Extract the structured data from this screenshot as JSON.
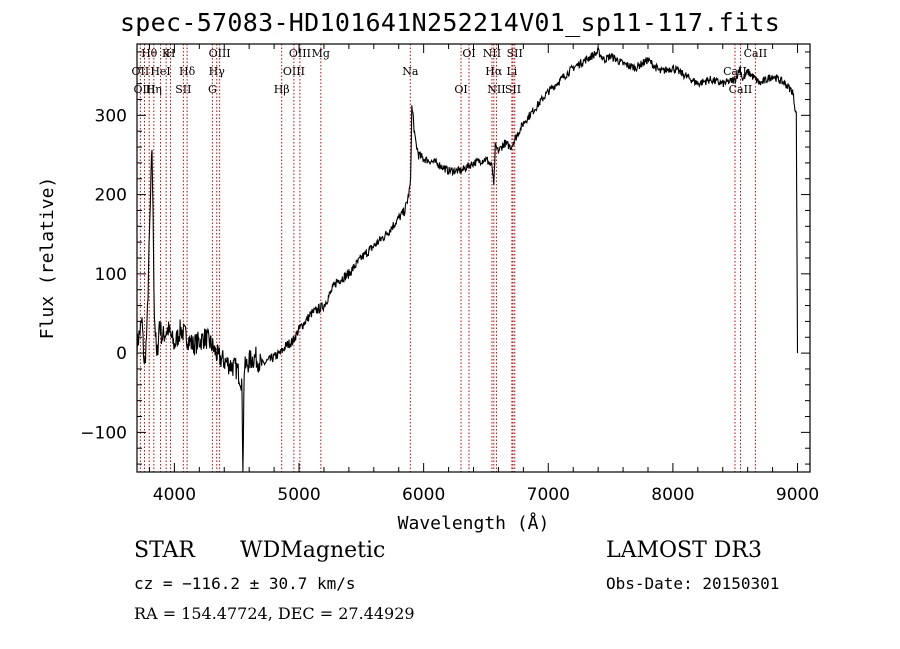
{
  "chart_data": {
    "type": "line",
    "title": "spec-57083-HD101641N252214V01_sp11-117.fits",
    "xlabel": "Wavelength (Å)",
    "ylabel": "Flux (relative)",
    "xlim": [
      3700,
      9100
    ],
    "ylim": [
      -150,
      390
    ],
    "xticks": [
      4000,
      5000,
      6000,
      7000,
      8000,
      9000
    ],
    "yticks": [
      -100,
      0,
      100,
      200,
      300
    ],
    "grid": false,
    "series": [
      {
        "x": [
          3700,
          3740,
          3760,
          3780,
          3800,
          3820,
          3840,
          3860,
          3880,
          3900,
          3950,
          4000,
          4050,
          4100,
          4150,
          4200,
          4250,
          4300,
          4350,
          4400,
          4450,
          4500,
          4540,
          4550,
          4560,
          4600,
          4650,
          4700,
          4750,
          4800,
          4850,
          4900,
          4950,
          5000,
          5100,
          5200,
          5300,
          5400,
          5500,
          5600,
          5700,
          5800,
          5850,
          5880,
          5895,
          5905,
          5915,
          5930,
          5960,
          6000,
          6100,
          6200,
          6300,
          6400,
          6500,
          6550,
          6563,
          6575,
          6600,
          6650,
          6700,
          6750,
          6800,
          6900,
          7000,
          7100,
          7200,
          7300,
          7350,
          7400,
          7450,
          7500,
          7600,
          7700,
          7800,
          7900,
          8000,
          8100,
          8200,
          8300,
          8400,
          8500,
          8540,
          8560,
          8600,
          8700,
          8800,
          8900,
          8960,
          8990,
          9000
        ],
        "y": [
          10,
          40,
          -20,
          30,
          150,
          260,
          50,
          -10,
          40,
          20,
          30,
          10,
          30,
          20,
          10,
          15,
          20,
          10,
          -5,
          -10,
          -15,
          -20,
          -35,
          -140,
          -20,
          -10,
          -5,
          -15,
          -10,
          -5,
          0,
          10,
          15,
          30,
          50,
          60,
          90,
          100,
          120,
          135,
          150,
          170,
          180,
          200,
          215,
          310,
          300,
          270,
          250,
          245,
          240,
          230,
          230,
          240,
          245,
          235,
          210,
          260,
          255,
          265,
          260,
          275,
          290,
          310,
          330,
          345,
          360,
          370,
          375,
          380,
          370,
          375,
          365,
          360,
          370,
          355,
          360,
          350,
          340,
          345,
          340,
          345,
          360,
          345,
          355,
          340,
          350,
          340,
          330,
          300,
          0
        ]
      }
    ],
    "annotations": [
      {
        "label": "Hθ",
        "x": 3798
      },
      {
        "label": "OII",
        "x": 3727
      },
      {
        "label": "OIII",
        "x": 3760
      },
      {
        "label": "K",
        "x": 3934
      },
      {
        "label": "HeI",
        "x": 3889
      },
      {
        "label": "Hη",
        "x": 3835
      },
      {
        "label": "H",
        "x": 3969
      },
      {
        "label": "Hδ",
        "x": 4102
      },
      {
        "label": "SII",
        "x": 4072
      },
      {
        "label": "OIII",
        "x": 4363
      },
      {
        "label": "Hγ",
        "x": 4340
      },
      {
        "label": "G",
        "x": 4305
      },
      {
        "label": "OIII",
        "x": 5007
      },
      {
        "label": "OIII",
        "x": 4959
      },
      {
        "label": "Hβ",
        "x": 4861
      },
      {
        "label": "Mg",
        "x": 5175
      },
      {
        "label": "Na",
        "x": 5893
      },
      {
        "label": "OI",
        "x": 6300
      },
      {
        "label": "OI",
        "x": 6364
      },
      {
        "label": "Hα",
        "x": 6563
      },
      {
        "label": "SII",
        "x": 6717
      },
      {
        "label": "NII",
        "x": 6548
      },
      {
        "label": "Li",
        "x": 6708
      },
      {
        "label": "NII",
        "x": 6584
      },
      {
        "label": "SII",
        "x": 6731
      },
      {
        "label": "CaII",
        "x": 8498
      },
      {
        "label": "CaII",
        "x": 8542
      },
      {
        "label": "CaII",
        "x": 8662
      }
    ]
  },
  "info": {
    "class": "STAR",
    "subclass": "WDMagnetic",
    "survey": "LAMOST DR3",
    "cz": "cz = −116.2 ± 30.7 km/s",
    "obs_date": "Obs-Date: 20150301",
    "coords": "RA = 154.47724, DEC =  27.44929"
  },
  "colors": {
    "lines": "#cc0000",
    "spectrum": "#000000"
  }
}
